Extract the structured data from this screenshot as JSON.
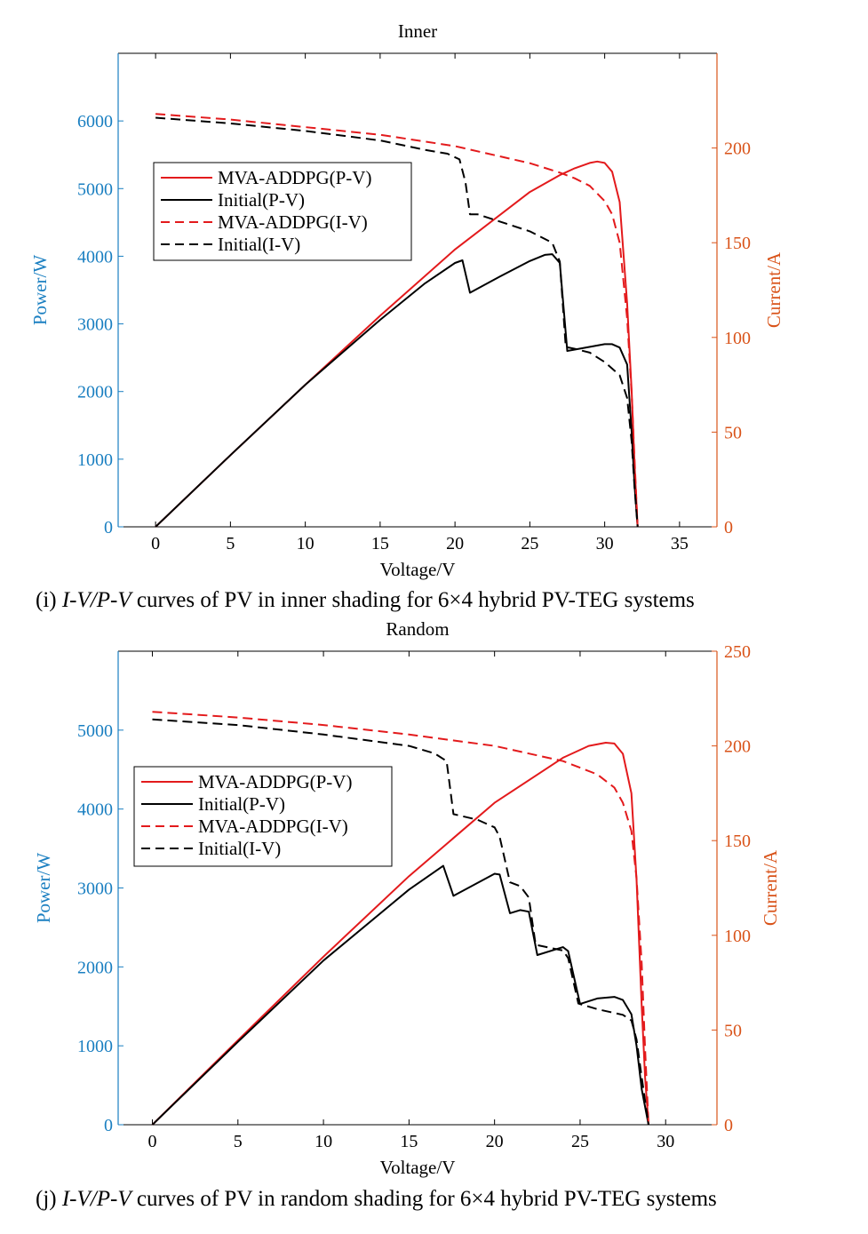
{
  "colors": {
    "left_axis": "#1a7fc1",
    "right_axis": "#d95319",
    "mva": "#e31a1c",
    "initial": "#000000"
  },
  "chart_data": [
    {
      "type": "line",
      "title": "Inner",
      "xlabel": "Voltage/V",
      "ylabel_left": "Power/W",
      "ylabel_right": "Current/A",
      "xlim": [
        -2.5,
        37.5
      ],
      "ylim_left": [
        0,
        7000
      ],
      "ylim_right": [
        0,
        250
      ],
      "xticks": [
        0,
        5,
        10,
        15,
        20,
        25,
        30,
        35
      ],
      "yticks_left": [
        0,
        1000,
        2000,
        3000,
        4000,
        5000,
        6000
      ],
      "yticks_right": [
        0,
        50,
        100,
        150,
        200
      ],
      "legend_position": "upper-left",
      "caption_prefix": "(i) ",
      "caption_italic": "I-V/P-V",
      "caption_rest": " curves of PV in inner shading for 6×4 hybrid PV-TEG systems",
      "series": [
        {
          "name": "MVA-ADDPG(P-V)",
          "axis": "left",
          "style": "solid",
          "color": "#e31a1c",
          "x": [
            0,
            5,
            10,
            15,
            20,
            25,
            27,
            28,
            29,
            29.5,
            30,
            30.5,
            31,
            31.5,
            31.8,
            32,
            32.2
          ],
          "y": [
            0,
            1060,
            2100,
            3120,
            4100,
            4950,
            5200,
            5300,
            5380,
            5400,
            5380,
            5250,
            4800,
            3300,
            2000,
            900,
            0
          ]
        },
        {
          "name": "Initial(P-V)",
          "axis": "left",
          "style": "solid",
          "color": "#000000",
          "x": [
            0,
            5,
            10,
            15,
            18,
            20,
            20.5,
            21,
            23,
            25,
            26,
            26.5,
            27,
            27.5,
            28,
            30,
            30.5,
            31,
            31.5,
            31.8,
            32,
            32.2
          ],
          "y": [
            0,
            1060,
            2100,
            3060,
            3600,
            3900,
            3940,
            3460,
            3700,
            3930,
            4020,
            4030,
            3900,
            2600,
            2620,
            2700,
            2700,
            2650,
            2400,
            1400,
            600,
            0
          ]
        },
        {
          "name": "MVA-ADDPG(I-V)",
          "axis": "right",
          "style": "dashed",
          "color": "#e31a1c",
          "x": [
            0,
            5,
            10,
            15,
            20,
            25,
            27,
            28,
            29,
            30,
            30.5,
            31,
            31.5,
            31.8,
            32,
            32.2
          ],
          "y": [
            218,
            215,
            211,
            207,
            201,
            192,
            187,
            184,
            180,
            172,
            165,
            150,
            110,
            70,
            35,
            0
          ]
        },
        {
          "name": "Initial(I-V)",
          "axis": "right",
          "style": "dashed",
          "color": "#000000",
          "x": [
            0,
            5,
            10,
            15,
            18,
            19.5,
            20.3,
            20.7,
            21,
            21.5,
            25,
            26.5,
            27,
            27.4,
            28,
            29,
            30,
            31,
            31.5,
            31.8,
            32,
            32.2
          ],
          "y": [
            216,
            213,
            209,
            204,
            199,
            197,
            194,
            182,
            165,
            165,
            156,
            150,
            140,
            95,
            94,
            92,
            87,
            80,
            68,
            45,
            20,
            0
          ]
        }
      ]
    },
    {
      "type": "line",
      "title": "Random",
      "xlabel": "Voltage/V",
      "ylabel_left": "Power/W",
      "ylabel_right": "Current/A",
      "xlim": [
        -2,
        33
      ],
      "ylim_left": [
        0,
        6000
      ],
      "ylim_right": [
        0,
        250
      ],
      "xticks": [
        0,
        5,
        10,
        15,
        20,
        25,
        30
      ],
      "yticks_left": [
        0,
        1000,
        2000,
        3000,
        4000,
        5000
      ],
      "yticks_right": [
        0,
        50,
        100,
        150,
        200,
        250
      ],
      "legend_position": "upper-left",
      "caption_prefix": "(j) ",
      "caption_italic": "I-V/P-V",
      "caption_rest": " curves of PV in random shading for 6×4 hybrid PV-TEG systems",
      "series": [
        {
          "name": "MVA-ADDPG(P-V)",
          "axis": "left",
          "style": "solid",
          "color": "#e31a1c",
          "x": [
            0,
            5,
            10,
            15,
            20,
            24,
            25.5,
            26.5,
            27,
            27.5,
            28,
            28.3,
            28.6,
            28.8,
            29
          ],
          "y": [
            0,
            1070,
            2130,
            3150,
            4080,
            4650,
            4800,
            4840,
            4830,
            4700,
            4200,
            3100,
            1500,
            600,
            0
          ]
        },
        {
          "name": "Initial(P-V)",
          "axis": "left",
          "style": "solid",
          "color": "#000000",
          "x": [
            0,
            5,
            10,
            15,
            17,
            17.6,
            20,
            20.3,
            20.9,
            21.5,
            22,
            22.5,
            24,
            24.3,
            25,
            26,
            27,
            27.5,
            28,
            28.3,
            28.6,
            29
          ],
          "y": [
            0,
            1050,
            2080,
            2980,
            3280,
            2900,
            3180,
            3170,
            2680,
            2720,
            2700,
            2150,
            2250,
            2200,
            1530,
            1600,
            1620,
            1580,
            1400,
            1000,
            450,
            0
          ]
        },
        {
          "name": "MVA-ADDPG(I-V)",
          "axis": "right",
          "style": "dashed",
          "color": "#e31a1c",
          "x": [
            0,
            5,
            10,
            15,
            20,
            24,
            26,
            27,
            27.5,
            28,
            28.3,
            28.6,
            28.8,
            29
          ],
          "y": [
            218,
            215,
            211,
            206,
            200,
            192,
            185,
            178,
            170,
            155,
            130,
            85,
            40,
            0
          ]
        },
        {
          "name": "Initial(I-V)",
          "axis": "right",
          "style": "dashed",
          "color": "#000000",
          "x": [
            0,
            5,
            10,
            15,
            16.5,
            17.2,
            17.6,
            19,
            20,
            20.3,
            20.9,
            21.5,
            22,
            22.4,
            24,
            24.3,
            24.9,
            26,
            27,
            27.5,
            28,
            28.3,
            28.6,
            29
          ],
          "y": [
            214,
            211,
            206,
            200,
            196,
            192,
            164,
            161,
            157,
            152,
            128,
            126,
            120,
            95,
            92,
            88,
            64,
            61,
            59,
            58,
            55,
            45,
            25,
            0
          ]
        }
      ]
    }
  ]
}
